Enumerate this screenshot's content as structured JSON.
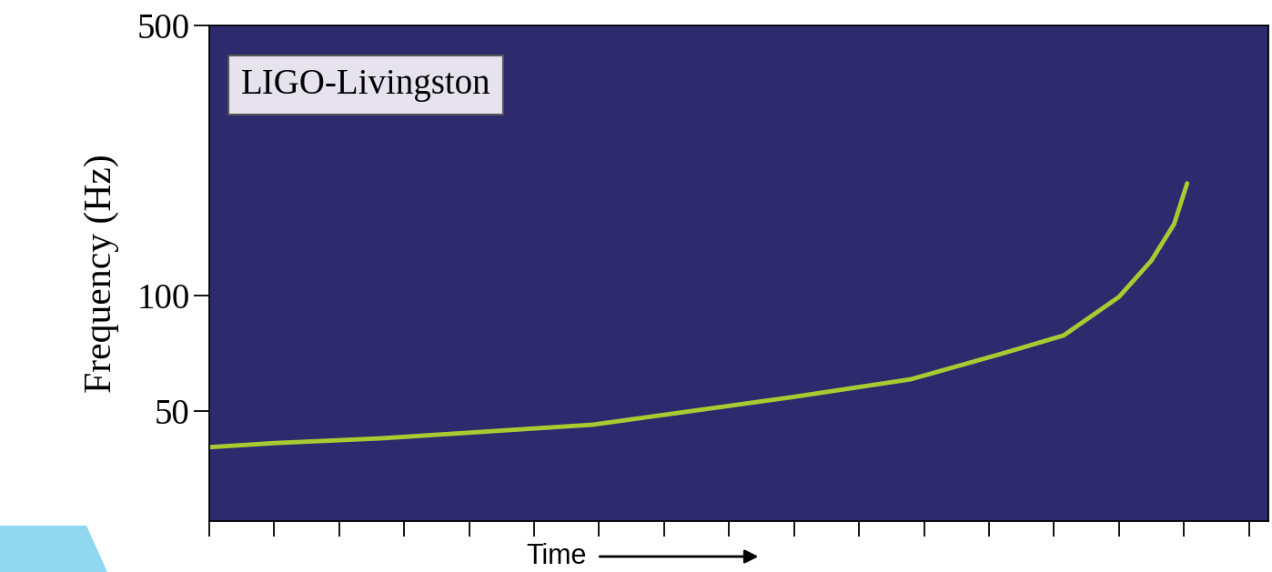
{
  "chart_data": {
    "type": "line",
    "annotations": [
      "LIGO-Livingston"
    ],
    "x_label": "Time",
    "y_label": "Frequency (Hz)",
    "x": [
      0,
      0.02,
      0.053,
      0.118,
      0.179,
      0.216,
      0.244,
      0.263,
      0.28,
      0.29,
      0.297,
      0.301
    ],
    "values": [
      40.4,
      41.4,
      42.6,
      46.2,
      54.4,
      60.6,
      70.6,
      78.7,
      99,
      123,
      153,
      195
    ],
    "color": "#b5de2b",
    "log": "y",
    "tick_labels": "y",
    "xlim": [
      0,
      0.326
    ],
    "xticks": [
      0,
      0.02,
      0.04,
      0.06,
      0.08,
      0.1,
      0.12,
      0.14,
      0.16,
      0.18,
      0.2,
      0.22,
      0.24,
      0.26,
      0.28,
      0.3,
      0.32
    ],
    "ylim": [
      26,
      500
    ],
    "yticks": [
      50,
      100,
      500
    ]
  }
}
